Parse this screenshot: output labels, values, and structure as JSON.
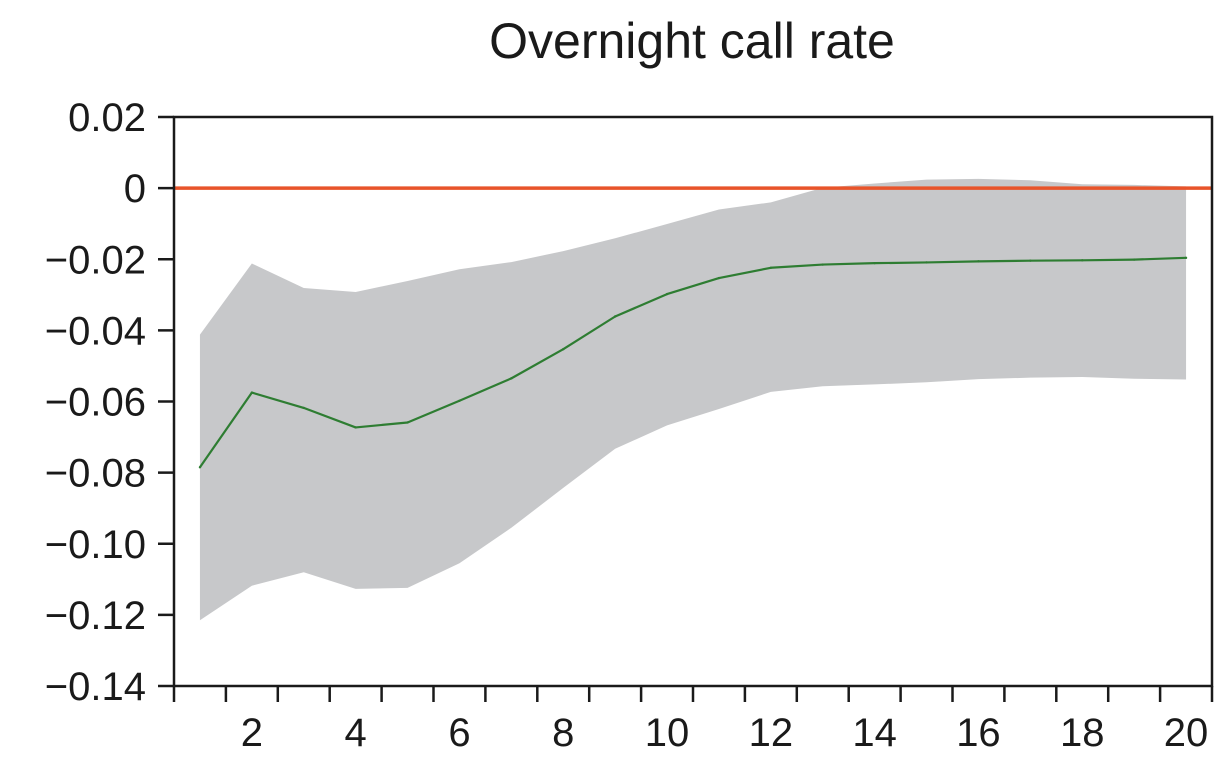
{
  "chart_data": {
    "type": "line",
    "title": "Overnight call rate",
    "xlabel": "",
    "ylabel": "",
    "x": [
      1,
      2,
      3,
      4,
      5,
      6,
      7,
      8,
      9,
      10,
      11,
      12,
      13,
      14,
      15,
      16,
      17,
      18,
      19,
      20
    ],
    "xlim": [
      0.5,
      20.5
    ],
    "ylim": [
      -0.14,
      0.02
    ],
    "x_ticks": [
      2,
      4,
      6,
      8,
      10,
      12,
      14,
      16,
      18,
      20
    ],
    "x_tick_labels": [
      "2",
      "4",
      "6",
      "8",
      "10",
      "12",
      "14",
      "16",
      "18",
      "20"
    ],
    "y_ticks": [
      0.02,
      0,
      -0.02,
      -0.04,
      -0.06,
      -0.08,
      -0.1,
      -0.12,
      -0.14
    ],
    "y_tick_labels": [
      "0.02",
      "0",
      "−0.02",
      "−0.04",
      "−0.06",
      "−0.08",
      "−0.10",
      "−0.12",
      "−0.14"
    ],
    "grid": false,
    "series": [
      {
        "values": [
          -0.0785,
          -0.0575,
          -0.0618,
          -0.0673,
          -0.0659,
          -0.0598,
          -0.0535,
          -0.0453,
          -0.0361,
          -0.0298,
          -0.0253,
          -0.0224,
          -0.0215,
          -0.0211,
          -0.0209,
          -0.0206,
          -0.0204,
          -0.0203,
          -0.0201,
          -0.0196
        ],
        "color": "#2e7d32"
      }
    ],
    "band": {
      "upper": [
        -0.0412,
        -0.0212,
        -0.0281,
        -0.0292,
        -0.0261,
        -0.0228,
        -0.0208,
        -0.0177,
        -0.0141,
        -0.0101,
        -0.006,
        -0.004,
        0.0001,
        0.0013,
        0.0024,
        0.0026,
        0.0022,
        0.0011,
        0.0009,
        0.0005
      ],
      "lower": [
        -0.1215,
        -0.1118,
        -0.108,
        -0.1127,
        -0.1124,
        -0.1055,
        -0.0955,
        -0.0843,
        -0.0733,
        -0.0667,
        -0.0621,
        -0.0573,
        -0.0557,
        -0.0552,
        -0.0546,
        -0.0537,
        -0.0533,
        -0.0531,
        -0.0536,
        -0.0538
      ],
      "color": "#c7c8ca"
    },
    "reference_line": {
      "y": 0,
      "color": "#e8542a"
    },
    "colors": {
      "axis": "#1a1a1a",
      "background": "#ffffff"
    }
  }
}
